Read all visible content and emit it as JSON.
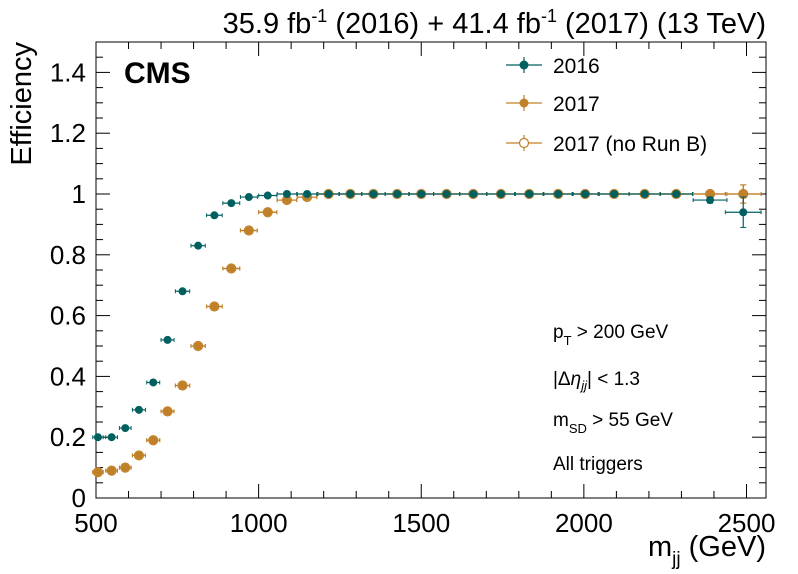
{
  "chart_data": {
    "type": "scatter",
    "title": "35.9 fb-1 (2016) + 41.4 fb-1 (2017) (13 TeV)",
    "title_parts": {
      "lumi2016": "35.9 fb",
      "sup1": "-1",
      "mid": " (2016) + 41.4 fb",
      "sup2": "-1",
      "end": " (2017) (13 TeV)"
    },
    "experiment_label": "CMS",
    "xlabel": "m",
    "xlabel_sub": "jj",
    "xlabel_unit": " (GeV)",
    "ylabel": "Efficiency",
    "xlim": [
      500,
      2560
    ],
    "ylim": [
      0,
      1.5
    ],
    "x_ticks": [
      "500",
      "1000",
      "1500",
      "2000",
      "2500"
    ],
    "y_ticks": [
      "0",
      "0.2",
      "0.4",
      "0.6",
      "0.8",
      "1",
      "1.2",
      "1.4"
    ],
    "x_tick_values": [
      500,
      1000,
      1500,
      2000,
      2500
    ],
    "y_tick_values": [
      0,
      0.2,
      0.4,
      0.6,
      0.8,
      1.0,
      1.2,
      1.4
    ],
    "legend_position": "top-right",
    "annotations": {
      "pt_cut": {
        "main": "p",
        "sub": "T",
        "rest": " > 200 GeV"
      },
      "deta_cut": {
        "open": "|Δ",
        "eta": "η",
        "sub": "jj",
        "rest": "| < 1.3"
      },
      "msd_cut": {
        "main": "m",
        "sub": "SD",
        "rest": " > 55 GeV"
      },
      "triggers": "All triggers"
    },
    "series": [
      {
        "name": "2016",
        "color": "#006060",
        "marker": "filled-circle",
        "points": [
          {
            "x": 506,
            "y": 0.2,
            "xerr": 16,
            "yerr": 0.005
          },
          {
            "x": 548,
            "y": 0.2,
            "xerr": 18,
            "yerr": 0.005
          },
          {
            "x": 590,
            "y": 0.23,
            "xerr": 18,
            "yerr": 0.005
          },
          {
            "x": 632,
            "y": 0.29,
            "xerr": 20,
            "yerr": 0.005
          },
          {
            "x": 676,
            "y": 0.38,
            "xerr": 20,
            "yerr": 0.005
          },
          {
            "x": 720,
            "y": 0.52,
            "xerr": 20,
            "yerr": 0.005
          },
          {
            "x": 766,
            "y": 0.68,
            "xerr": 22,
            "yerr": 0.005
          },
          {
            "x": 814,
            "y": 0.83,
            "xerr": 22,
            "yerr": 0.005
          },
          {
            "x": 864,
            "y": 0.93,
            "xerr": 24,
            "yerr": 0.005
          },
          {
            "x": 916,
            "y": 0.97,
            "xerr": 26,
            "yerr": 0.005
          },
          {
            "x": 970,
            "y": 0.99,
            "xerr": 26,
            "yerr": 0.004
          },
          {
            "x": 1028,
            "y": 0.995,
            "xerr": 28,
            "yerr": 0.003
          },
          {
            "x": 1087,
            "y": 1.0,
            "xerr": 30,
            "yerr": 0.002
          },
          {
            "x": 1149,
            "y": 1.0,
            "xerr": 30,
            "yerr": 0.002
          },
          {
            "x": 1215,
            "y": 1.0,
            "xerr": 33,
            "yerr": 0.002
          },
          {
            "x": 1282,
            "y": 1.0,
            "xerr": 35,
            "yerr": 0.002
          },
          {
            "x": 1353,
            "y": 1.0,
            "xerr": 36,
            "yerr": 0.002
          },
          {
            "x": 1426,
            "y": 1.0,
            "xerr": 37,
            "yerr": 0.002
          },
          {
            "x": 1500,
            "y": 1.0,
            "xerr": 38,
            "yerr": 0.002
          },
          {
            "x": 1578,
            "y": 1.0,
            "xerr": 40,
            "yerr": 0.002
          },
          {
            "x": 1660,
            "y": 1.0,
            "xerr": 42,
            "yerr": 0.002
          },
          {
            "x": 1745,
            "y": 1.0,
            "xerr": 44,
            "yerr": 0.002
          },
          {
            "x": 1832,
            "y": 1.0,
            "xerr": 45,
            "yerr": 0.003
          },
          {
            "x": 1921,
            "y": 1.0,
            "xerr": 46,
            "yerr": 0.003
          },
          {
            "x": 2004,
            "y": 1.0,
            "xerr": 40,
            "yerr": 0.004
          },
          {
            "x": 2093,
            "y": 1.0,
            "xerr": 46,
            "yerr": 0.005
          },
          {
            "x": 2187,
            "y": 1.0,
            "xerr": 48,
            "yerr": 0.006
          },
          {
            "x": 2284,
            "y": 1.0,
            "xerr": 50,
            "yerr": 0.008
          },
          {
            "x": 2388,
            "y": 0.98,
            "xerr": 52,
            "yerr": 0.01
          },
          {
            "x": 2490,
            "y": 0.94,
            "xerr": 55,
            "yerr": 0.05
          }
        ]
      },
      {
        "name": "2017",
        "color": "#c08028",
        "marker": "filled-circle",
        "points": [
          {
            "x": 506,
            "y": 0.085,
            "xerr": 16,
            "yerr": 0.005
          },
          {
            "x": 548,
            "y": 0.09,
            "xerr": 18,
            "yerr": 0.005
          },
          {
            "x": 590,
            "y": 0.1,
            "xerr": 18,
            "yerr": 0.005
          },
          {
            "x": 632,
            "y": 0.14,
            "xerr": 20,
            "yerr": 0.005
          },
          {
            "x": 676,
            "y": 0.19,
            "xerr": 20,
            "yerr": 0.005
          },
          {
            "x": 720,
            "y": 0.285,
            "xerr": 20,
            "yerr": 0.005
          },
          {
            "x": 766,
            "y": 0.37,
            "xerr": 22,
            "yerr": 0.005
          },
          {
            "x": 814,
            "y": 0.5,
            "xerr": 22,
            "yerr": 0.005
          },
          {
            "x": 864,
            "y": 0.63,
            "xerr": 24,
            "yerr": 0.005
          },
          {
            "x": 916,
            "y": 0.755,
            "xerr": 26,
            "yerr": 0.005
          },
          {
            "x": 970,
            "y": 0.88,
            "xerr": 26,
            "yerr": 0.005
          },
          {
            "x": 1028,
            "y": 0.94,
            "xerr": 28,
            "yerr": 0.005
          },
          {
            "x": 1087,
            "y": 0.98,
            "xerr": 30,
            "yerr": 0.005
          },
          {
            "x": 1149,
            "y": 0.99,
            "xerr": 30,
            "yerr": 0.003
          },
          {
            "x": 1215,
            "y": 1.0,
            "xerr": 33,
            "yerr": 0.002
          },
          {
            "x": 1282,
            "y": 1.0,
            "xerr": 35,
            "yerr": 0.002
          },
          {
            "x": 1353,
            "y": 1.0,
            "xerr": 36,
            "yerr": 0.002
          },
          {
            "x": 1426,
            "y": 1.0,
            "xerr": 37,
            "yerr": 0.002
          },
          {
            "x": 1500,
            "y": 1.0,
            "xerr": 38,
            "yerr": 0.002
          },
          {
            "x": 1578,
            "y": 1.0,
            "xerr": 40,
            "yerr": 0.002
          },
          {
            "x": 1660,
            "y": 1.0,
            "xerr": 42,
            "yerr": 0.002
          },
          {
            "x": 1745,
            "y": 1.0,
            "xerr": 44,
            "yerr": 0.002
          },
          {
            "x": 1832,
            "y": 1.0,
            "xerr": 45,
            "yerr": 0.003
          },
          {
            "x": 1921,
            "y": 1.0,
            "xerr": 46,
            "yerr": 0.003
          },
          {
            "x": 2004,
            "y": 1.0,
            "xerr": 40,
            "yerr": 0.004
          },
          {
            "x": 2093,
            "y": 1.0,
            "xerr": 46,
            "yerr": 0.005
          },
          {
            "x": 2187,
            "y": 1.0,
            "xerr": 48,
            "yerr": 0.006
          },
          {
            "x": 2284,
            "y": 1.0,
            "xerr": 50,
            "yerr": 0.007
          },
          {
            "x": 2388,
            "y": 1.0,
            "xerr": 52,
            "yerr": 0.008
          },
          {
            "x": 2490,
            "y": 1.0,
            "xerr": 55,
            "yerr": 0.03
          }
        ]
      },
      {
        "name": "2017 (no Run B)",
        "color": "#c08028",
        "marker": "open-circle",
        "points": [
          {
            "x": 506,
            "y": 0.085,
            "xerr": 16,
            "yerr": 0.005
          },
          {
            "x": 548,
            "y": 0.09,
            "xerr": 18,
            "yerr": 0.005
          },
          {
            "x": 590,
            "y": 0.1,
            "xerr": 18,
            "yerr": 0.005
          },
          {
            "x": 632,
            "y": 0.14,
            "xerr": 20,
            "yerr": 0.005
          },
          {
            "x": 676,
            "y": 0.19,
            "xerr": 20,
            "yerr": 0.005
          },
          {
            "x": 720,
            "y": 0.285,
            "xerr": 20,
            "yerr": 0.005
          },
          {
            "x": 766,
            "y": 0.37,
            "xerr": 22,
            "yerr": 0.005
          },
          {
            "x": 814,
            "y": 0.5,
            "xerr": 22,
            "yerr": 0.005
          },
          {
            "x": 864,
            "y": 0.63,
            "xerr": 24,
            "yerr": 0.005
          },
          {
            "x": 916,
            "y": 0.755,
            "xerr": 26,
            "yerr": 0.005
          },
          {
            "x": 970,
            "y": 0.88,
            "xerr": 26,
            "yerr": 0.005
          },
          {
            "x": 1028,
            "y": 0.94,
            "xerr": 28,
            "yerr": 0.005
          },
          {
            "x": 1087,
            "y": 0.98,
            "xerr": 30,
            "yerr": 0.005
          },
          {
            "x": 1149,
            "y": 0.99,
            "xerr": 30,
            "yerr": 0.003
          },
          {
            "x": 1215,
            "y": 1.0,
            "xerr": 33,
            "yerr": 0.002
          },
          {
            "x": 1282,
            "y": 1.0,
            "xerr": 35,
            "yerr": 0.002
          },
          {
            "x": 1353,
            "y": 1.0,
            "xerr": 36,
            "yerr": 0.002
          },
          {
            "x": 1426,
            "y": 1.0,
            "xerr": 37,
            "yerr": 0.002
          },
          {
            "x": 1500,
            "y": 1.0,
            "xerr": 38,
            "yerr": 0.002
          },
          {
            "x": 1578,
            "y": 1.0,
            "xerr": 40,
            "yerr": 0.002
          },
          {
            "x": 1660,
            "y": 1.0,
            "xerr": 42,
            "yerr": 0.002
          },
          {
            "x": 1745,
            "y": 1.0,
            "xerr": 44,
            "yerr": 0.002
          },
          {
            "x": 1832,
            "y": 1.0,
            "xerr": 45,
            "yerr": 0.003
          },
          {
            "x": 1921,
            "y": 1.0,
            "xerr": 46,
            "yerr": 0.003
          },
          {
            "x": 2004,
            "y": 1.0,
            "xerr": 40,
            "yerr": 0.004
          },
          {
            "x": 2093,
            "y": 1.0,
            "xerr": 46,
            "yerr": 0.005
          },
          {
            "x": 2187,
            "y": 1.0,
            "xerr": 48,
            "yerr": 0.006
          },
          {
            "x": 2284,
            "y": 1.0,
            "xerr": 50,
            "yerr": 0.007
          },
          {
            "x": 2388,
            "y": 1.0,
            "xerr": 52,
            "yerr": 0.008
          },
          {
            "x": 2490,
            "y": 1.0,
            "xerr": 55,
            "yerr": 0.03
          }
        ]
      }
    ]
  }
}
